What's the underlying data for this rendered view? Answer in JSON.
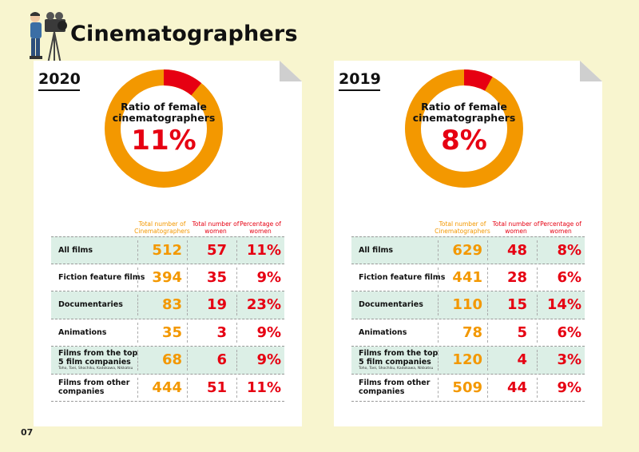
{
  "title": "Cinematographers",
  "page_number": "07",
  "columns": {
    "total": "Total number of Cinematographers",
    "women": "Total number of women",
    "pct": "Percentage of women"
  },
  "colors": {
    "accent_orange": "#f39800",
    "accent_red": "#e60012",
    "row_shade": "#dcefe6",
    "background": "#f8f5cf"
  },
  "panels": [
    {
      "year": "2020",
      "ratio_caption": "Ratio of female cinematographers",
      "ratio_value": "11%",
      "ratio_fraction": 0.11,
      "rows": [
        {
          "label": "All films",
          "sub": "",
          "total": "512",
          "women": "57",
          "pct": "11%"
        },
        {
          "label": "Fiction feature films",
          "sub": "",
          "total": "394",
          "women": "35",
          "pct": "9%"
        },
        {
          "label": "Documentaries",
          "sub": "",
          "total": "83",
          "women": "19",
          "pct": "23%"
        },
        {
          "label": "Animations",
          "sub": "",
          "total": "35",
          "women": "3",
          "pct": "9%"
        },
        {
          "label": "Films from the top 5 film companies",
          "sub": "Toho, Toei, Shochiku, Kadokawa, Nikkatsu",
          "total": "68",
          "women": "6",
          "pct": "9%"
        },
        {
          "label": "Films from other companies",
          "sub": "",
          "total": "444",
          "women": "51",
          "pct": "11%"
        }
      ]
    },
    {
      "year": "2019",
      "ratio_caption": "Ratio of female cinematographers",
      "ratio_value": "8%",
      "ratio_fraction": 0.08,
      "rows": [
        {
          "label": "All films",
          "sub": "",
          "total": "629",
          "women": "48",
          "pct": "8%"
        },
        {
          "label": "Fiction feature films",
          "sub": "",
          "total": "441",
          "women": "28",
          "pct": "6%"
        },
        {
          "label": "Documentaries",
          "sub": "",
          "total": "110",
          "women": "15",
          "pct": "14%"
        },
        {
          "label": "Animations",
          "sub": "",
          "total": "78",
          "women": "5",
          "pct": "6%"
        },
        {
          "label": "Films from the top 5 film companies",
          "sub": "Toho, Toei, Shochiku, Kadokawa, Nikkatsu",
          "total": "120",
          "women": "4",
          "pct": "3%"
        },
        {
          "label": "Films from other companies",
          "sub": "",
          "total": "509",
          "women": "44",
          "pct": "9%"
        }
      ]
    }
  ]
}
